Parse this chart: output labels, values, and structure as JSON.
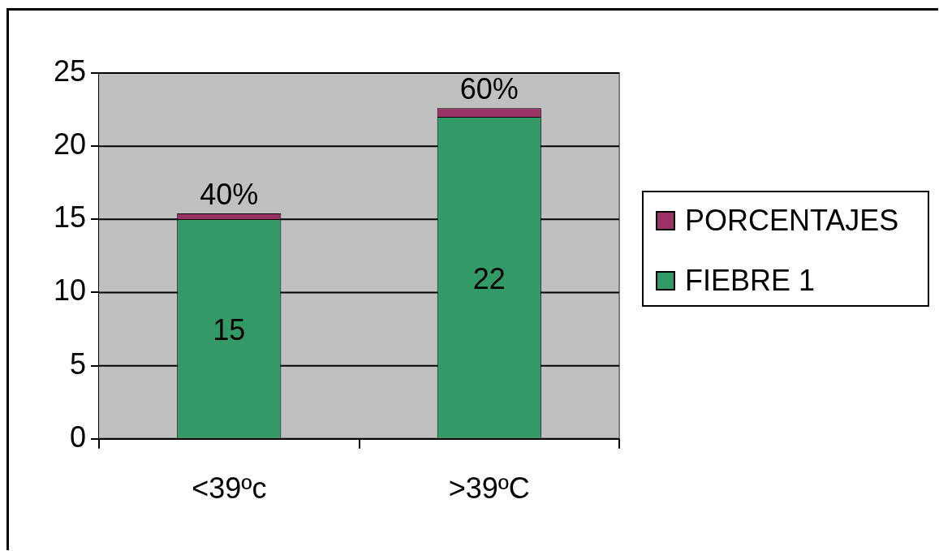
{
  "chart_data": {
    "type": "bar",
    "stacked": true,
    "categories": [
      "<39ºc",
      ">39ºC"
    ],
    "series": [
      {
        "name": "FIEBRE 1",
        "color": "#339966",
        "values": [
          15,
          22
        ],
        "value_labels": [
          "15",
          "22"
        ]
      },
      {
        "name": "PORCENTAJES",
        "color": "#993366",
        "values": [
          0.4,
          0.6
        ],
        "value_labels": [
          "40%",
          "60%"
        ]
      }
    ],
    "ylim": [
      0,
      25
    ],
    "yticks": [
      0,
      5,
      10,
      15,
      20,
      25
    ],
    "grid": "y",
    "legend": "right"
  }
}
